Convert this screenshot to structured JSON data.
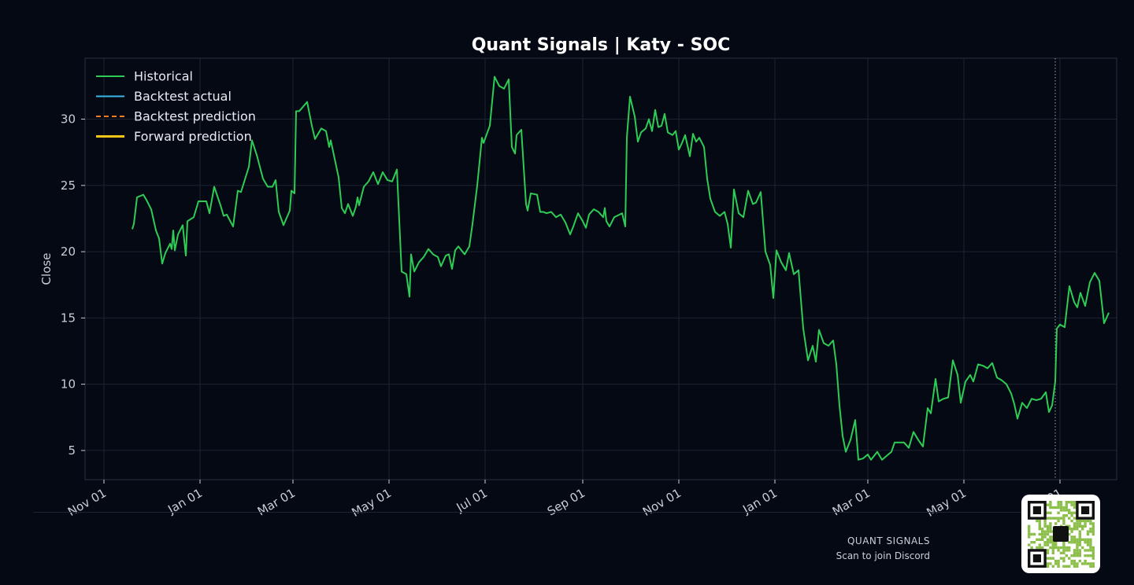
{
  "chart_data": {
    "type": "line",
    "title": "Quant Signals | Katy - SOC",
    "xlabel": "",
    "ylabel": "Close",
    "x_range": [
      "2024-10-20",
      "2026-08-06"
    ],
    "ylim": [
      2.8,
      34.6
    ],
    "yticks": [
      5,
      10,
      15,
      20,
      25,
      30
    ],
    "xticks": [
      {
        "date": "2024-11-01",
        "label": "Nov 01"
      },
      {
        "date": "2025-01-01",
        "label": "Jan 01"
      },
      {
        "date": "2025-03-01",
        "label": "Mar 01"
      },
      {
        "date": "2025-05-01",
        "label": "May 01"
      },
      {
        "date": "2025-07-01",
        "label": "Jul 01"
      },
      {
        "date": "2025-09-01",
        "label": "Sep 01"
      },
      {
        "date": "2025-11-01",
        "label": "Nov 01"
      },
      {
        "date": "2026-01-01",
        "label": "Jan 01"
      },
      {
        "date": "2026-03-01",
        "label": "Mar 01"
      },
      {
        "date": "2026-05-01",
        "label": "May 01"
      },
      {
        "date": "2026-07-01",
        "label": "Jul 01"
      }
    ],
    "grid": true,
    "legend_position": "top-left",
    "forecast_start": "2026-06-28",
    "series": [
      {
        "name": "Historical",
        "color": "#2ecc55",
        "style": "solid",
        "points": [
          [
            "2024-11-19",
            21.7
          ],
          [
            "2024-11-20",
            22.1
          ],
          [
            "2024-11-22",
            24.1
          ],
          [
            "2024-11-26",
            24.3
          ],
          [
            "2024-11-28",
            23.9
          ],
          [
            "2024-12-01",
            23.2
          ],
          [
            "2024-12-04",
            21.6
          ],
          [
            "2024-12-06",
            21.0
          ],
          [
            "2024-12-08",
            19.1
          ],
          [
            "2024-12-10",
            19.9
          ],
          [
            "2024-12-13",
            20.6
          ],
          [
            "2024-12-14",
            20.2
          ],
          [
            "2024-12-15",
            21.6
          ],
          [
            "2024-12-16",
            20.1
          ],
          [
            "2024-12-18",
            21.3
          ],
          [
            "2024-12-21",
            22.0
          ],
          [
            "2024-12-23",
            19.7
          ],
          [
            "2024-12-24",
            22.3
          ],
          [
            "2024-12-28",
            22.6
          ],
          [
            "2024-12-31",
            23.8
          ],
          [
            "2025-01-05",
            23.8
          ],
          [
            "2025-01-07",
            22.9
          ],
          [
            "2025-01-10",
            24.9
          ],
          [
            "2025-01-14",
            23.5
          ],
          [
            "2025-01-16",
            22.7
          ],
          [
            "2025-01-18",
            22.8
          ],
          [
            "2025-01-22",
            21.9
          ],
          [
            "2025-01-25",
            24.6
          ],
          [
            "2025-01-27",
            24.5
          ],
          [
            "2025-02-01",
            26.4
          ],
          [
            "2025-02-03",
            28.4
          ],
          [
            "2025-02-06",
            27.3
          ],
          [
            "2025-02-10",
            25.5
          ],
          [
            "2025-02-13",
            24.9
          ],
          [
            "2025-02-16",
            24.9
          ],
          [
            "2025-02-18",
            25.4
          ],
          [
            "2025-02-20",
            23.0
          ],
          [
            "2025-02-23",
            22.0
          ],
          [
            "2025-02-27",
            23.1
          ],
          [
            "2025-02-28",
            24.6
          ],
          [
            "2025-03-02",
            24.4
          ],
          [
            "2025-03-03",
            30.6
          ],
          [
            "2025-03-05",
            30.6
          ],
          [
            "2025-03-10",
            31.3
          ],
          [
            "2025-03-13",
            29.5
          ],
          [
            "2025-03-15",
            28.5
          ],
          [
            "2025-03-19",
            29.3
          ],
          [
            "2025-03-22",
            29.1
          ],
          [
            "2025-03-24",
            27.9
          ],
          [
            "2025-03-25",
            28.4
          ],
          [
            "2025-03-30",
            25.6
          ],
          [
            "2025-04-01",
            23.3
          ],
          [
            "2025-04-03",
            22.9
          ],
          [
            "2025-04-05",
            23.6
          ],
          [
            "2025-04-08",
            22.7
          ],
          [
            "2025-04-10",
            23.4
          ],
          [
            "2025-04-11",
            24.1
          ],
          [
            "2025-04-12",
            23.5
          ],
          [
            "2025-04-15",
            24.9
          ],
          [
            "2025-04-18",
            25.3
          ],
          [
            "2025-04-21",
            26.0
          ],
          [
            "2025-04-24",
            25.1
          ],
          [
            "2025-04-27",
            26.0
          ],
          [
            "2025-04-30",
            25.4
          ],
          [
            "2025-05-03",
            25.3
          ],
          [
            "2025-05-06",
            26.2
          ],
          [
            "2025-05-09",
            18.5
          ],
          [
            "2025-05-12",
            18.3
          ],
          [
            "2025-05-14",
            16.6
          ],
          [
            "2025-05-15",
            19.8
          ],
          [
            "2025-05-17",
            18.5
          ],
          [
            "2025-05-20",
            19.2
          ],
          [
            "2025-05-23",
            19.6
          ],
          [
            "2025-05-26",
            20.2
          ],
          [
            "2025-05-29",
            19.8
          ],
          [
            "2025-06-01",
            19.6
          ],
          [
            "2025-06-03",
            18.9
          ],
          [
            "2025-06-06",
            19.7
          ],
          [
            "2025-06-08",
            19.8
          ],
          [
            "2025-06-10",
            18.7
          ],
          [
            "2025-06-12",
            20.1
          ],
          [
            "2025-06-14",
            20.4
          ],
          [
            "2025-06-18",
            19.8
          ],
          [
            "2025-06-21",
            20.4
          ],
          [
            "2025-06-23",
            22.1
          ],
          [
            "2025-06-26",
            25.0
          ],
          [
            "2025-06-29",
            28.6
          ],
          [
            "2025-06-30",
            28.2
          ],
          [
            "2025-07-04",
            29.5
          ],
          [
            "2025-07-07",
            33.2
          ],
          [
            "2025-07-10",
            32.5
          ],
          [
            "2025-07-13",
            32.3
          ],
          [
            "2025-07-16",
            33.0
          ],
          [
            "2025-07-18",
            27.9
          ],
          [
            "2025-07-20",
            27.4
          ],
          [
            "2025-07-21",
            28.8
          ],
          [
            "2025-07-24",
            29.2
          ],
          [
            "2025-07-27",
            23.6
          ],
          [
            "2025-07-28",
            23.1
          ],
          [
            "2025-07-30",
            24.4
          ],
          [
            "2025-08-03",
            24.3
          ],
          [
            "2025-08-05",
            23.0
          ],
          [
            "2025-08-07",
            23.0
          ],
          [
            "2025-08-09",
            22.9
          ],
          [
            "2025-08-12",
            23.0
          ],
          [
            "2025-08-15",
            22.6
          ],
          [
            "2025-08-18",
            22.8
          ],
          [
            "2025-08-21",
            22.2
          ],
          [
            "2025-08-24",
            21.3
          ],
          [
            "2025-08-26",
            21.9
          ],
          [
            "2025-08-29",
            22.9
          ],
          [
            "2025-09-01",
            22.3
          ],
          [
            "2025-09-03",
            21.8
          ],
          [
            "2025-09-05",
            22.8
          ],
          [
            "2025-09-08",
            23.2
          ],
          [
            "2025-09-11",
            23.0
          ],
          [
            "2025-09-14",
            22.6
          ],
          [
            "2025-09-15",
            23.3
          ],
          [
            "2025-09-16",
            22.3
          ],
          [
            "2025-09-18",
            21.9
          ],
          [
            "2025-09-21",
            22.6
          ],
          [
            "2025-09-26",
            22.9
          ],
          [
            "2025-09-28",
            21.9
          ],
          [
            "2025-09-29",
            28.6
          ],
          [
            "2025-10-01",
            31.7
          ],
          [
            "2025-10-04",
            30.2
          ],
          [
            "2025-10-06",
            28.3
          ],
          [
            "2025-10-08",
            29.0
          ],
          [
            "2025-10-11",
            29.3
          ],
          [
            "2025-10-13",
            30.0
          ],
          [
            "2025-10-15",
            29.1
          ],
          [
            "2025-10-17",
            30.7
          ],
          [
            "2025-10-19",
            29.4
          ],
          [
            "2025-10-21",
            29.5
          ],
          [
            "2025-10-23",
            30.4
          ],
          [
            "2025-10-25",
            29.0
          ],
          [
            "2025-10-28",
            28.8
          ],
          [
            "2025-10-30",
            29.1
          ],
          [
            "2025-11-01",
            27.7
          ],
          [
            "2025-11-03",
            28.2
          ],
          [
            "2025-11-05",
            28.8
          ],
          [
            "2025-11-08",
            27.2
          ],
          [
            "2025-11-10",
            28.9
          ],
          [
            "2025-11-12",
            28.3
          ],
          [
            "2025-11-14",
            28.6
          ],
          [
            "2025-11-17",
            27.9
          ],
          [
            "2025-11-19",
            25.5
          ],
          [
            "2025-11-21",
            24.0
          ],
          [
            "2025-11-24",
            23.0
          ],
          [
            "2025-11-27",
            22.7
          ],
          [
            "2025-11-30",
            23.0
          ],
          [
            "2025-12-02",
            22.1
          ],
          [
            "2025-12-04",
            20.3
          ],
          [
            "2025-12-06",
            24.7
          ],
          [
            "2025-12-09",
            22.9
          ],
          [
            "2025-12-12",
            22.6
          ],
          [
            "2025-12-15",
            24.6
          ],
          [
            "2025-12-18",
            23.6
          ],
          [
            "2025-12-20",
            23.7
          ],
          [
            "2025-12-23",
            24.5
          ],
          [
            "2025-12-26",
            20.0
          ],
          [
            "2025-12-29",
            19.0
          ],
          [
            "2025-12-31",
            16.5
          ],
          [
            "2026-01-02",
            20.1
          ],
          [
            "2026-01-05",
            19.2
          ],
          [
            "2026-01-08",
            18.6
          ],
          [
            "2026-01-10",
            19.9
          ],
          [
            "2026-01-13",
            18.3
          ],
          [
            "2026-01-16",
            18.6
          ],
          [
            "2026-01-19",
            14.2
          ],
          [
            "2026-01-22",
            11.8
          ],
          [
            "2026-01-25",
            12.9
          ],
          [
            "2026-01-27",
            11.7
          ],
          [
            "2026-01-29",
            14.1
          ],
          [
            "2026-02-01",
            13.1
          ],
          [
            "2026-02-04",
            12.9
          ],
          [
            "2026-02-07",
            13.3
          ],
          [
            "2026-02-09",
            11.5
          ],
          [
            "2026-02-11",
            8.4
          ],
          [
            "2026-02-13",
            6.1
          ],
          [
            "2026-02-15",
            4.9
          ],
          [
            "2026-02-18",
            5.8
          ],
          [
            "2026-02-21",
            7.3
          ],
          [
            "2026-02-23",
            4.3
          ],
          [
            "2026-02-26",
            4.4
          ],
          [
            "2026-03-01",
            4.7
          ],
          [
            "2026-03-03",
            4.3
          ],
          [
            "2026-03-07",
            4.9
          ],
          [
            "2026-03-10",
            4.3
          ],
          [
            "2026-03-13",
            4.6
          ],
          [
            "2026-03-16",
            4.9
          ],
          [
            "2026-03-18",
            5.6
          ],
          [
            "2026-03-21",
            5.6
          ],
          [
            "2026-03-24",
            5.6
          ],
          [
            "2026-03-27",
            5.2
          ],
          [
            "2026-03-30",
            6.4
          ],
          [
            "2026-04-02",
            5.8
          ],
          [
            "2026-04-05",
            5.3
          ],
          [
            "2026-04-08",
            8.2
          ],
          [
            "2026-04-10",
            7.8
          ],
          [
            "2026-04-13",
            10.4
          ],
          [
            "2026-04-15",
            8.7
          ],
          [
            "2026-04-18",
            8.9
          ],
          [
            "2026-04-21",
            9.0
          ],
          [
            "2026-04-24",
            11.8
          ],
          [
            "2026-04-27",
            10.7
          ],
          [
            "2026-04-29",
            8.6
          ],
          [
            "2026-05-02",
            10.2
          ],
          [
            "2026-05-05",
            10.7
          ],
          [
            "2026-05-07",
            10.2
          ],
          [
            "2026-05-10",
            11.5
          ],
          [
            "2026-05-13",
            11.4
          ],
          [
            "2026-05-16",
            11.2
          ],
          [
            "2026-05-19",
            11.6
          ],
          [
            "2026-05-22",
            10.5
          ],
          [
            "2026-05-25",
            10.3
          ],
          [
            "2026-05-28",
            10.0
          ],
          [
            "2026-05-31",
            9.3
          ],
          [
            "2026-06-02",
            8.5
          ],
          [
            "2026-06-04",
            7.4
          ],
          [
            "2026-06-07",
            8.6
          ],
          [
            "2026-06-10",
            8.2
          ],
          [
            "2026-06-13",
            8.9
          ],
          [
            "2026-06-16",
            8.8
          ],
          [
            "2026-06-19",
            8.9
          ],
          [
            "2026-06-22",
            9.4
          ],
          [
            "2026-06-24",
            7.9
          ],
          [
            "2026-06-26",
            8.4
          ],
          [
            "2026-06-28",
            10.2
          ],
          [
            "2026-06-29",
            14.2
          ],
          [
            "2026-07-01",
            14.5
          ],
          [
            "2026-07-04",
            14.3
          ],
          [
            "2026-07-07",
            17.4
          ],
          [
            "2026-07-10",
            16.2
          ],
          [
            "2026-07-12",
            15.8
          ],
          [
            "2026-07-14",
            16.9
          ],
          [
            "2026-07-17",
            15.9
          ],
          [
            "2026-07-20",
            17.7
          ],
          [
            "2026-07-23",
            18.4
          ],
          [
            "2026-07-26",
            17.8
          ],
          [
            "2026-07-29",
            14.6
          ],
          [
            "2026-08-01",
            15.4
          ]
        ]
      },
      {
        "name": "Backtest actual",
        "color": "#3bb6ea",
        "style": "solid",
        "points": []
      },
      {
        "name": "Backtest prediction",
        "color": "#f07c26",
        "style": "dashed",
        "points": []
      },
      {
        "name": "Forward prediction",
        "color": "#f5c518",
        "style": "solid-thick",
        "points": []
      }
    ]
  },
  "footer": {
    "brand": "QUANT SIGNALS",
    "tagline": "Scan to join Discord"
  }
}
